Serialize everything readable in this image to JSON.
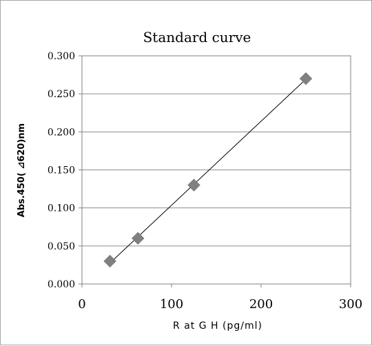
{
  "chart_data": {
    "type": "scatter",
    "title": "Standard curve",
    "xlabel": "R at G H  (pg/ml)",
    "ylabel": "Abs.450( ⊿620)nm",
    "xlim": [
      0,
      300
    ],
    "ylim": [
      0,
      0.3
    ],
    "xticks": [
      0,
      100,
      200,
      300
    ],
    "xtick_labels": [
      "0",
      "100",
      "200",
      "300"
    ],
    "yticks": [
      0,
      0.05,
      0.1,
      0.15,
      0.2,
      0.25,
      0.3
    ],
    "ytick_labels": [
      "0.000",
      "0.050",
      "0.100",
      "0.150",
      "0.200",
      "0.250",
      "0.300"
    ],
    "grid": {
      "horizontal": true,
      "vertical": false
    },
    "legend": "none",
    "trendline": "linear",
    "series": [
      {
        "marker": "diamond",
        "color": "#808080",
        "x": [
          31.25,
          62.5,
          125,
          250
        ],
        "y": [
          0.03,
          0.06,
          0.13,
          0.27
        ]
      }
    ]
  }
}
